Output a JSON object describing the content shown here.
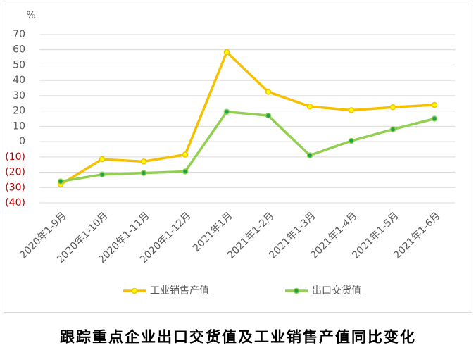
{
  "chart_data": {
    "type": "line",
    "title": "跟踪重点企业出口交货值及工业销售产值同比变化",
    "y_axis_label": "%",
    "categories": [
      "2020年1-9月",
      "2020年1-10月",
      "2020年1-11月",
      "2020年1-12月",
      "2021年1月",
      "2021年1-2月",
      "2021年1-3月",
      "2021年1-4月",
      "2021年1-5月",
      "2021年1-6月"
    ],
    "series": [
      {
        "name": "工业销售产值",
        "color": "#f5c000",
        "marker_color": "#ffff00",
        "values": [
          -28,
          -11.5,
          -13,
          -8.5,
          58.5,
          32.5,
          23,
          20.5,
          22.5,
          24
        ]
      },
      {
        "name": "出口交货值",
        "color": "#92d050",
        "marker_color": "#1fa04a",
        "values": [
          -26,
          -21.5,
          -20.5,
          -19.5,
          19.5,
          17,
          -9,
          0.5,
          8,
          15
        ]
      }
    ],
    "ylim": [
      -40,
      70
    ],
    "yticks": [
      {
        "value": -40,
        "label": "(40)"
      },
      {
        "value": -30,
        "label": "(30)"
      },
      {
        "value": -20,
        "label": "(20)"
      },
      {
        "value": -10,
        "label": "(10)"
      },
      0,
      10,
      20,
      30,
      40,
      50,
      60,
      70
    ],
    "grid": true
  }
}
